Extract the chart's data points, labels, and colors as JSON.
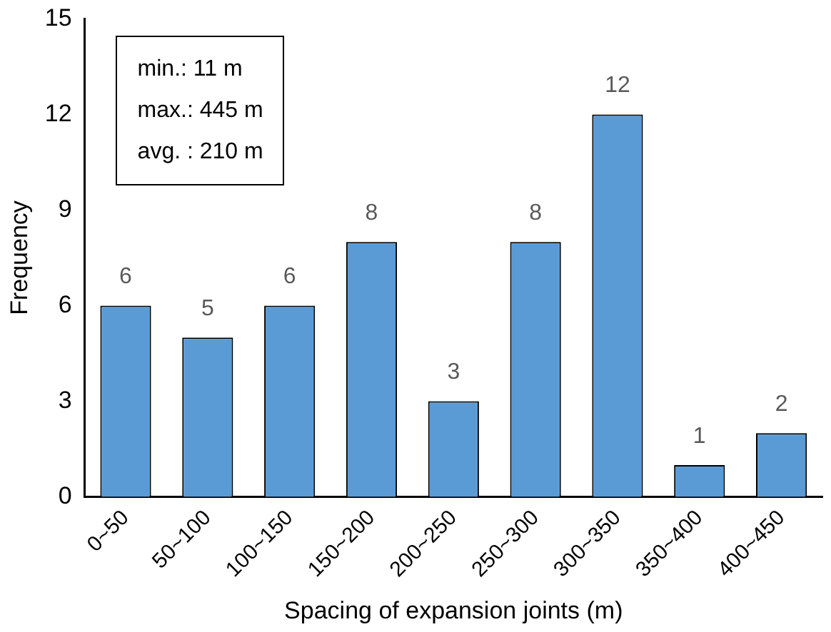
{
  "chart_data": {
    "type": "bar",
    "xlabel": "Spacing of expansion joints (m)",
    "ylabel": "Frequency",
    "categories": [
      "0~50",
      "50~100",
      "100~150",
      "150~200",
      "200~250",
      "250~300",
      "300~350",
      "350~400",
      "400~450"
    ],
    "values": [
      6,
      5,
      6,
      8,
      3,
      8,
      12,
      1,
      2
    ],
    "color": "#5b9bd5",
    "ylim": [
      0,
      15
    ],
    "yticks": [
      0,
      3,
      6,
      9,
      12,
      15
    ],
    "grid": false,
    "legend": false,
    "data_labels": true,
    "annotations": [
      "min.: 11 m",
      "max.: 445 m",
      "avg. : 210 m"
    ]
  }
}
